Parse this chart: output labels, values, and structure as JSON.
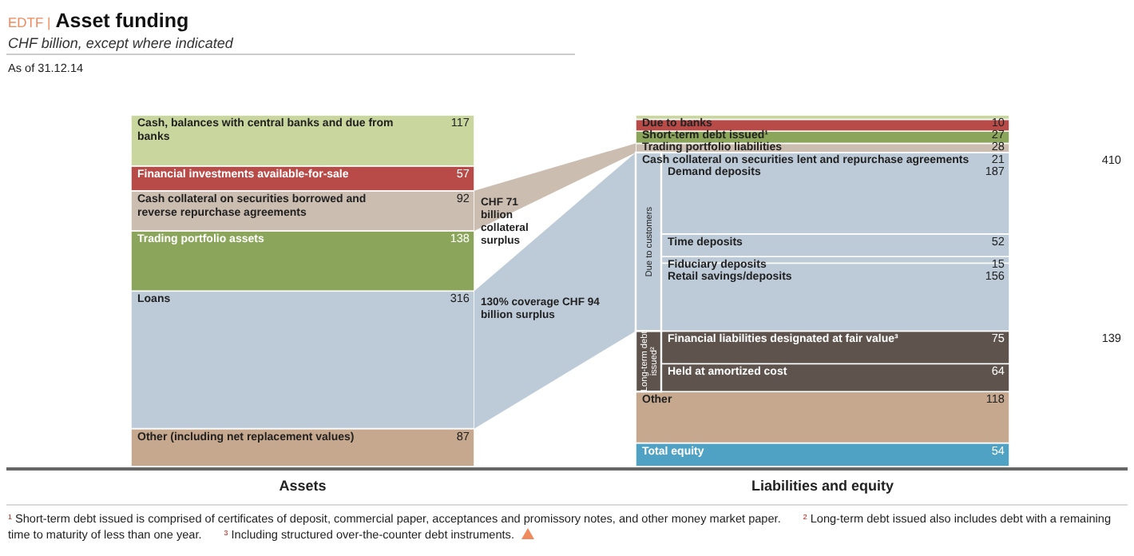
{
  "chart_data": {
    "type": "bar",
    "stacked": true,
    "title": "Asset funding",
    "subtitle": "CHF billion, except where indicated",
    "categories": [
      "Assets",
      "Liabilities and equity"
    ],
    "data_labels": true,
    "legend": false,
    "series": [
      {
        "name": "Other (including net replacement values)",
        "color": "#c6a88e",
        "values": [
          87,
          null
        ]
      },
      {
        "name": "Loans",
        "color": "#bdcbd8",
        "values": [
          316,
          null
        ]
      },
      {
        "name": "Trading portfolio assets",
        "color": "#8ba65a",
        "values": [
          138,
          null
        ]
      },
      {
        "name": "Cash collateral on securities borrowed and reverse repurchase agreements",
        "color": "#cbbdb0",
        "values": [
          92,
          null
        ]
      },
      {
        "name": "Financial investments available-for-sale",
        "color": "#b84a47",
        "values": [
          57,
          null
        ]
      },
      {
        "name": "Cash, balances with central banks and due from banks",
        "color": "#c9d69e",
        "values": [
          117,
          null
        ]
      },
      {
        "name": "Total equity",
        "color": "#4fa2c4",
        "values": [
          null,
          54
        ]
      },
      {
        "name": "Other",
        "color": "#c6a88e",
        "values": [
          null,
          118
        ]
      },
      {
        "name": "Held at amortized cost",
        "color": "#5f534d",
        "values": [
          null,
          64
        ]
      },
      {
        "name": "Financial liabilities designated at fair value³",
        "color": "#5f534d",
        "values": [
          null,
          75
        ]
      },
      {
        "name": "Retail savings/deposits",
        "color": "#bdcbd8",
        "values": [
          null,
          156
        ]
      },
      {
        "name": "Fiduciary deposits",
        "color": "#bdcbd8",
        "values": [
          null,
          15
        ]
      },
      {
        "name": "Time deposits",
        "color": "#bdcbd8",
        "values": [
          null,
          52
        ]
      },
      {
        "name": "Demand deposits",
        "color": "#bdcbd8",
        "values": [
          null,
          187
        ]
      },
      {
        "name": "Cash collateral on securities lent and repurchase agreements",
        "color": "#cbbdb0",
        "values": [
          null,
          21
        ]
      },
      {
        "name": "Trading portfolio liabilities",
        "color": "#8ba65a",
        "values": [
          null,
          28
        ]
      },
      {
        "name": "Short-term debt issued¹",
        "color": "#b84a47",
        "values": [
          null,
          27
        ]
      },
      {
        "name": "Due to banks",
        "color": "#c9d69e",
        "values": [
          null,
          10
        ]
      }
    ],
    "annotations": [
      "EDTF |",
      "As of 31.12.14",
      "CHF 71 billion collateral surplus",
      "130% coverage CHF 94 billion surplus",
      "Due to customers",
      "410",
      "Long-term debt issued²",
      "139",
      "¹ Short-term debt issued is comprised of certificates of deposit, commercial paper, acceptances and promissory notes, and other money market paper.",
      "² Long-term debt issued also includes debt with a remaining time to maturity of less than one year.",
      "³ Including structured over-the-counter debt instruments."
    ]
  }
}
